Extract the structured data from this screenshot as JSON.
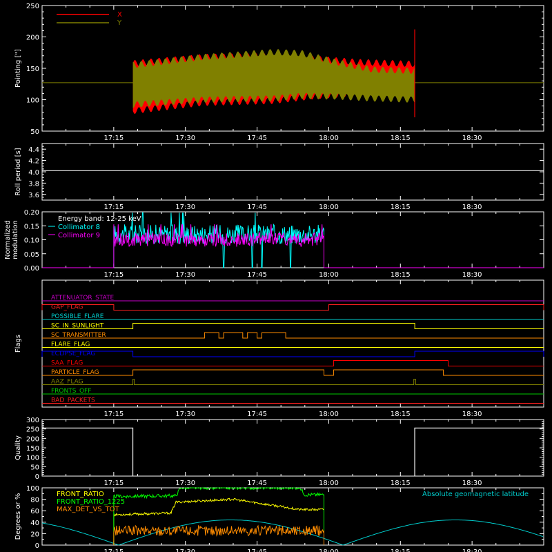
{
  "chart_data": [
    {
      "id": "pointing",
      "type": "line",
      "ylabel": "Pointing [\"]",
      "ylim": [
        50,
        250
      ],
      "yticks": [
        50,
        100,
        150,
        200,
        250
      ],
      "xlim": [
        "17:00",
        "18:45"
      ],
      "xticks": [
        "17:15",
        "17:30",
        "17:45",
        "18:00",
        "18:15",
        "18:30"
      ],
      "legend": [
        {
          "name": "X",
          "color": "#ff0000"
        },
        {
          "name": "Y",
          "color": "#808000"
        }
      ],
      "baseline": 127,
      "data_start": "17:19",
      "data_end": "18:18",
      "envelope": {
        "x": {
          "upper": [
            [
              0,
              158
            ],
            [
              0.25,
              168
            ],
            [
              0.5,
              170
            ],
            [
              0.65,
              165
            ],
            [
              0.8,
              160
            ],
            [
              1,
              157
            ]
          ],
          "lower": [
            [
              0,
              82
            ],
            [
              0.25,
              95
            ],
            [
              0.5,
              98
            ],
            [
              0.65,
              106
            ],
            [
              0.8,
              110
            ],
            [
              1,
              110
            ]
          ]
        },
        "y": {
          "upper": [
            [
              0,
              155
            ],
            [
              0.25,
              168
            ],
            [
              0.5,
              176
            ],
            [
              0.6,
              174
            ],
            [
              0.72,
              160
            ],
            [
              0.85,
              148
            ],
            [
              1,
              146
            ]
          ],
          "lower": [
            [
              0,
              92
            ],
            [
              0.25,
              100
            ],
            [
              0.5,
              102
            ],
            [
              0.6,
              106
            ],
            [
              0.72,
              105
            ],
            [
              0.85,
              102
            ],
            [
              1,
              100
            ]
          ]
        }
      },
      "spike": {
        "time": "18:18",
        "max": 212,
        "min": 72
      }
    },
    {
      "id": "roll",
      "type": "line",
      "ylabel": "Roll period [s]",
      "ylim": [
        3.5,
        4.5
      ],
      "yticks": [
        "3.6",
        "3.8",
        "4.0",
        "4.2",
        "4.4"
      ],
      "value": 4.02,
      "xticks": [
        "17:15",
        "17:30",
        "17:45",
        "18:00",
        "18:15",
        "18:30"
      ]
    },
    {
      "id": "modulation",
      "type": "line",
      "ylabel": "Normalized modulation",
      "ylim": [
        0,
        0.2
      ],
      "yticks": [
        "0.00",
        "0.05",
        "0.10",
        "0.15",
        "0.20"
      ],
      "xticks": [
        "17:15",
        "17:30",
        "17:45",
        "18:00",
        "18:15",
        "18:30"
      ],
      "energy_band": "Energy band: 12-25 keV",
      "series": [
        {
          "name": "Collimator 8",
          "color": "#00ffff",
          "mean": 0.12,
          "noise": 0.035
        },
        {
          "name": "Collimator 9",
          "color": "#ff00ff",
          "mean": 0.1,
          "noise": 0.025
        }
      ],
      "data_start": "17:15",
      "data_end": "17:59",
      "dropouts": [
        "17:38",
        "17:44",
        "17:46",
        "17:52"
      ]
    },
    {
      "id": "flags",
      "type": "line",
      "ylabel": "Flags",
      "xticks": [
        "17:15",
        "17:30",
        "17:45",
        "18:00",
        "18:15",
        "18:30"
      ],
      "flags": [
        {
          "name": "ATTENUATOR_STATE",
          "color": "#cc00cc",
          "on": []
        },
        {
          "name": "GAP_FLAG",
          "color": "#ff2020",
          "on": [
            [
              "17:00",
              "17:15"
            ],
            [
              "18:00",
              "18:45"
            ]
          ]
        },
        {
          "name": "POSSIBLE_FLARE",
          "color": "#00cccc",
          "on": []
        },
        {
          "name": "SC_IN_SUNLIGHT",
          "color": "#ffff00",
          "on": [
            [
              "17:19",
              "18:18"
            ]
          ]
        },
        {
          "name": "SC_TRANSMITTER",
          "color": "#ff8c00",
          "on": [
            [
              "17:34",
              "17:37"
            ],
            [
              "17:38",
              "17:42"
            ],
            [
              "17:43",
              "17:45"
            ],
            [
              "17:46",
              "17:51"
            ]
          ]
        },
        {
          "name": "FLARE_FLAG",
          "color": "#ffff00",
          "on": []
        },
        {
          "name": "ECLIPSE_FLAG",
          "color": "#0000ff",
          "on": [
            [
              "17:00",
              "17:19"
            ],
            [
              "18:18",
              "18:45"
            ]
          ]
        },
        {
          "name": "SAA_FLAG",
          "color": "#ff0000",
          "on": [
            [
              "18:01",
              "18:25"
            ]
          ]
        },
        {
          "name": "PARTICLE_FLAG",
          "color": "#ff8c00",
          "on": [
            [
              "17:19",
              "17:59"
            ],
            [
              "18:01",
              "18:24"
            ]
          ]
        },
        {
          "name": "AAZ_FLAG",
          "color": "#808000",
          "on": [
            [
              "17:19",
              "17:19.3"
            ],
            [
              "18:17.8",
              "18:18.2"
            ]
          ]
        },
        {
          "name": "FRONTS_OFF",
          "color": "#00cc00",
          "on": []
        },
        {
          "name": "BAD_PACKETS",
          "color": "#ff2020",
          "on": []
        }
      ]
    },
    {
      "id": "quality",
      "type": "line",
      "ylabel": "Quality",
      "ylim": [
        0,
        300
      ],
      "yticks": [
        "0",
        "50",
        "100",
        "150",
        "200",
        "250",
        "300"
      ],
      "xticks": [
        "17:15",
        "17:30",
        "17:45",
        "18:00",
        "18:15",
        "18:30"
      ],
      "segments": [
        [
          [
            "17:00",
            255
          ],
          [
            "17:19",
            255
          ]
        ],
        [
          [
            "18:18",
            255
          ],
          [
            "18:45",
            255
          ]
        ]
      ]
    },
    {
      "id": "ratios",
      "type": "line",
      "ylabel": "Degrees or %",
      "ylim": [
        0,
        100
      ],
      "yticks": [
        "0",
        "20",
        "40",
        "60",
        "80",
        "100"
      ],
      "xticks": [
        "17:15",
        "17:30",
        "17:45",
        "18:00",
        "18:15",
        "18:30"
      ],
      "right_label": "Absolute geomagnetic latitude",
      "series": [
        {
          "name": "FRONT_RATIO",
          "color": "#ffff00",
          "levels": [
            [
              "17:15",
              53
            ],
            [
              "17:27",
              56
            ],
            [
              "17:28",
              75
            ],
            [
              "17:40",
              80
            ],
            [
              "17:54",
              62
            ],
            [
              "17:59",
              62
            ]
          ]
        },
        {
          "name": "FRONT_RATIO_1225",
          "color": "#00ff00",
          "levels": [
            [
              "17:15",
              85
            ],
            [
              "17:28",
              86
            ],
            [
              "17:29",
              100
            ],
            [
              "17:54",
              100
            ],
            [
              "17:55",
              88
            ],
            [
              "17:59",
              88
            ]
          ]
        },
        {
          "name": "MAX_DET_VS_TOT",
          "color": "#ff8c00",
          "levels": [
            [
              "17:15",
              25
            ],
            [
              "17:59",
              25
            ]
          ]
        }
      ],
      "latitude": {
        "color": "#00cccc",
        "period_min": 47,
        "amplitude": 44,
        "first_min": "17:16"
      }
    }
  ]
}
